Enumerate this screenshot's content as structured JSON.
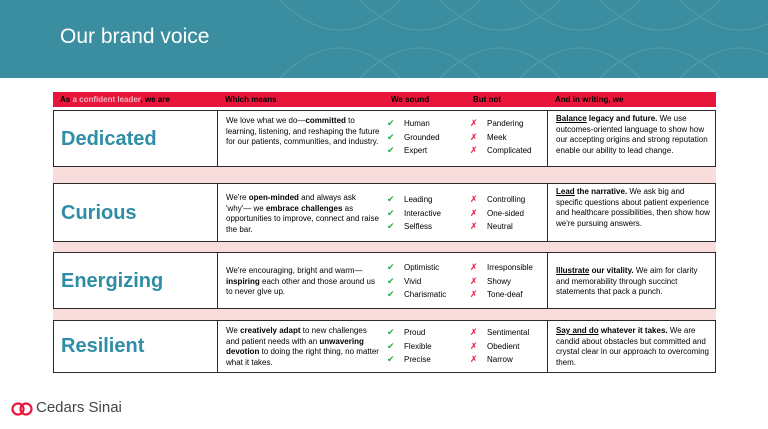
{
  "slide": {
    "title": "Our brand voice"
  },
  "table": {
    "headers": {
      "col1_prefix": "As ",
      "col1_accent": "a confident leader",
      "col1_suffix": ", we are",
      "col2": "Which means",
      "col3": "We sound",
      "col4": "But not",
      "col5": "And in writing, we"
    },
    "rows": [
      {
        "word": "Dedicated",
        "desc": [
          "We love what we do—",
          "committed",
          " to learning, listening, and reshaping the future for our patients, communities, and industry."
        ],
        "sound": [
          "Human",
          "Grounded",
          "Expert"
        ],
        "not": [
          "Pandering",
          "Meek",
          "Complicated"
        ],
        "writing": [
          "Balance",
          " legacy and future.",
          " We use outcomes-oriented language to show how our accepting origins and strong reputation enable our ability to lead change."
        ]
      },
      {
        "word": "Curious",
        "desc": [
          "We're ",
          "open-minded",
          " and always ask 'why'— we ",
          "embrace challenges",
          " as opportunities to improve, connect and raise the bar."
        ],
        "sound": [
          "Leading",
          "Interactive",
          "Selfless"
        ],
        "not": [
          "Controlling",
          "One-sided",
          "Neutral"
        ],
        "writing": [
          "Lead",
          " the narrative.",
          " We ask big and specific questions about patient experience and healthcare possibilities, then show how we're pursuing answers."
        ]
      },
      {
        "word": "Energizing",
        "desc": [
          "We're encouraging, bright and warm—",
          "inspiring",
          " each other and those around us to never give up."
        ],
        "sound": [
          "Optimistic",
          "Vivid",
          "Charismatic"
        ],
        "not": [
          "Irresponsible",
          "Showy",
          "Tone-deaf"
        ],
        "writing": [
          "Illustrate",
          " our vitality.",
          " We aim for clarity and memorability through succinct statements that pack a punch."
        ]
      },
      {
        "word": "Resilient",
        "desc": [
          "We ",
          "creatively adapt",
          " to new challenges and patient needs with an ",
          "unwavering devotion",
          " to doing the right thing, no matter what it takes."
        ],
        "sound": [
          "Proud",
          "Flexible",
          "Precise"
        ],
        "not": [
          "Sentimental",
          "Obedient",
          "Narrow"
        ],
        "writing": [
          "Say and do",
          " whatever it takes.",
          " We are candid about obstacles but committed and crystal clear in our approach to overcoming them."
        ]
      }
    ]
  },
  "footer": {
    "brand": "Cedars Sinai"
  },
  "colors": {
    "banner": "#3a8ea0",
    "header_bar": "#e8163b",
    "word": "#2f8ea5",
    "band": "#f9dcdc",
    "check": "#2aa84a",
    "cross": "#e8163b"
  },
  "icons": {
    "check": "✔",
    "cross": "✗",
    "logo": "cedars-sinai-logo"
  }
}
